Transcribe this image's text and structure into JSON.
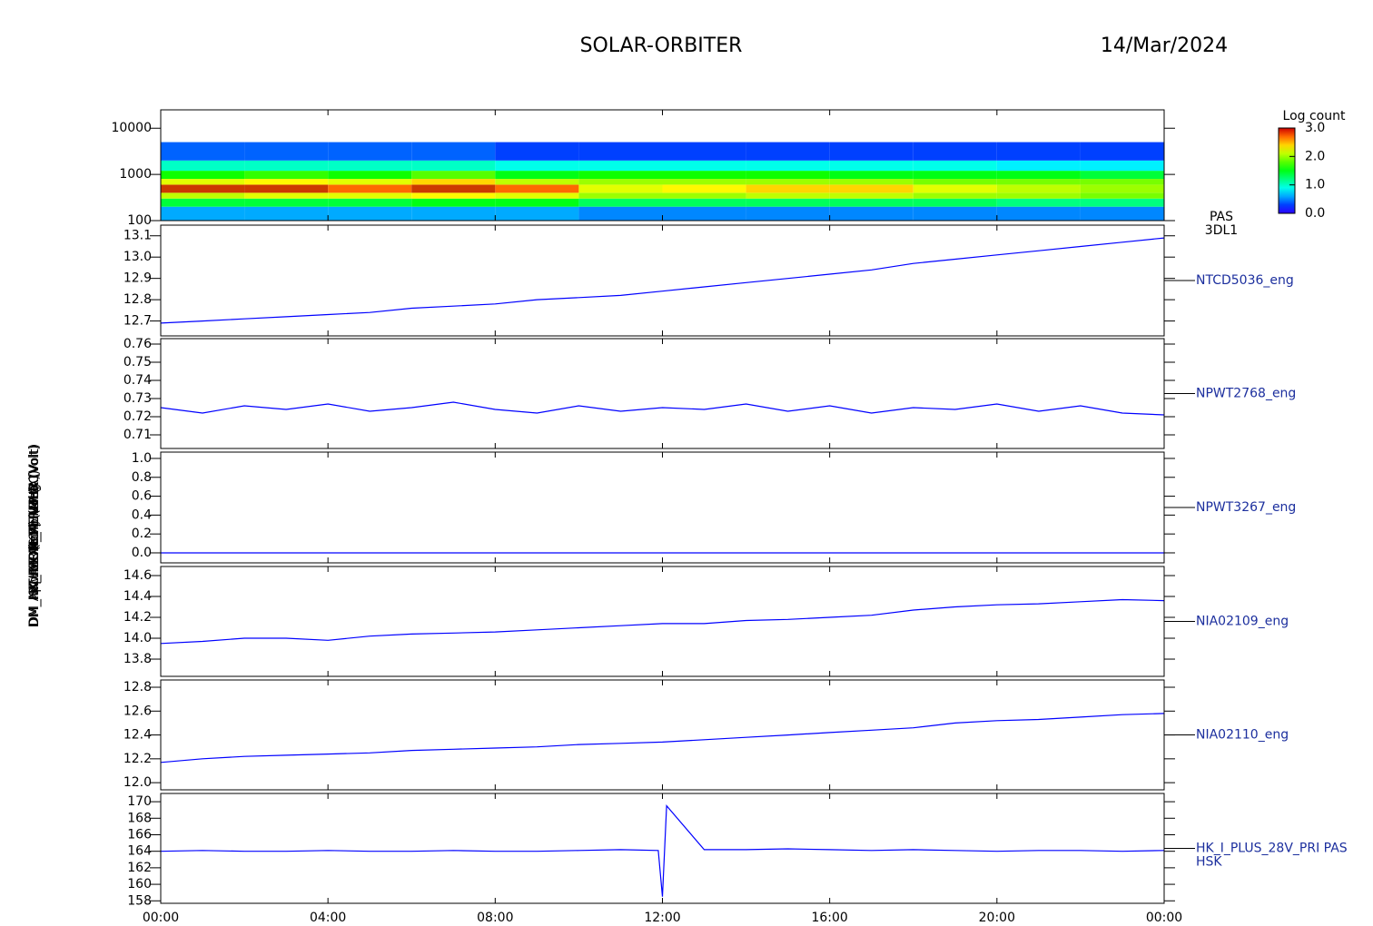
{
  "title": "SOLAR-ORBITER",
  "date": "14/Mar/2024",
  "chart_data": [
    {
      "type": "spectrogram",
      "ylabel": "(eV)",
      "label": [
        "PAS",
        "3DL1"
      ],
      "log": true,
      "ylim": [
        100,
        25000
      ],
      "yticks": [
        100,
        1000,
        10000
      ],
      "time_bins": [
        0,
        2,
        4,
        6,
        8,
        10,
        12,
        14,
        16,
        18,
        20,
        22,
        24
      ],
      "energy_bins": [
        100,
        200,
        300,
        400,
        600,
        800,
        1200,
        2000,
        5000
      ],
      "values": [
        [
          0.6,
          1.4,
          2.1,
          2.8,
          2.2,
          1.6,
          1.0,
          0.4
        ],
        [
          0.6,
          1.4,
          2.2,
          2.8,
          2.3,
          1.7,
          1.0,
          0.4
        ],
        [
          0.6,
          1.4,
          2.2,
          2.7,
          2.2,
          1.6,
          1.0,
          0.4
        ],
        [
          0.6,
          1.5,
          2.3,
          2.8,
          2.4,
          1.8,
          1.0,
          0.4
        ],
        [
          0.6,
          1.5,
          2.2,
          2.7,
          2.1,
          1.5,
          0.9,
          0.3
        ],
        [
          0.5,
          1.3,
          2.0,
          2.2,
          2.0,
          1.6,
          0.9,
          0.3
        ],
        [
          0.5,
          1.3,
          2.0,
          2.3,
          2.0,
          1.6,
          0.9,
          0.3
        ],
        [
          0.5,
          1.3,
          2.1,
          2.4,
          2.0,
          1.6,
          0.9,
          0.3
        ],
        [
          0.5,
          1.3,
          2.1,
          2.4,
          2.0,
          1.5,
          0.9,
          0.3
        ],
        [
          0.5,
          1.3,
          2.0,
          2.2,
          1.9,
          1.5,
          0.9,
          0.3
        ],
        [
          0.5,
          1.2,
          2.0,
          2.1,
          1.9,
          1.5,
          0.8,
          0.3
        ],
        [
          0.5,
          1.2,
          1.9,
          2.0,
          1.9,
          1.4,
          0.8,
          0.3
        ]
      ],
      "colorbar": {
        "title": "Log count",
        "lim": [
          0,
          3
        ],
        "ticks": [
          {
            "value": 0,
            "label": "0.0"
          },
          {
            "value": 1,
            "label": "1.0"
          },
          {
            "value": 2,
            "label": "2.0"
          },
          {
            "value": 3,
            "label": "3.0"
          }
        ]
      }
    },
    {
      "type": "line",
      "ylabel": "Approx Temp (DegC)",
      "label": "NTCD5036_eng",
      "color": "#0000ff",
      "ylim": [
        12.63,
        13.15
      ],
      "yticks": [
        12.7,
        12.8,
        12.9,
        {
          "value": 13.0,
          "label": "13.0"
        },
        13.1
      ],
      "x": [
        0,
        1,
        2,
        3,
        4,
        5,
        6,
        7,
        8,
        9,
        10,
        11,
        12,
        13,
        14,
        15,
        16,
        17,
        18,
        19,
        20,
        21,
        22,
        23,
        24
      ],
      "values": [
        12.69,
        12.7,
        12.71,
        12.72,
        12.73,
        12.74,
        12.76,
        12.77,
        12.78,
        12.8,
        12.81,
        12.82,
        12.84,
        12.86,
        12.88,
        12.9,
        12.92,
        12.94,
        12.97,
        12.99,
        13.01,
        13.03,
        13.05,
        13.07,
        13.09
      ]
    },
    {
      "type": "line",
      "ylabel": "SWA-EAS_TEMP (A)",
      "label": "NPWT2768_eng",
      "color": "#0000ff",
      "ylim": [
        0.7025,
        0.763
      ],
      "yticks": [
        0.71,
        0.72,
        0.73,
        0.74,
        0.75,
        0.76
      ],
      "x": [
        0,
        1,
        2,
        3,
        4,
        5,
        6,
        7,
        8,
        9,
        10,
        11,
        12,
        13,
        14,
        15,
        16,
        17,
        18,
        19,
        20,
        21,
        22,
        23,
        24
      ],
      "values": [
        0.725,
        0.722,
        0.726,
        0.724,
        0.727,
        0.723,
        0.725,
        0.728,
        0.724,
        0.722,
        0.726,
        0.723,
        0.725,
        0.724,
        0.727,
        0.723,
        0.726,
        0.722,
        0.725,
        0.724,
        0.727,
        0.723,
        0.726,
        0.722,
        0.721
      ]
    },
    {
      "type": "line",
      "ylabel": "THERMO4 (Volt)",
      "label": "NPWT3267_eng",
      "color": "#0000ff",
      "ylim": [
        -0.106,
        1.067
      ],
      "yticks": [
        {
          "value": 0,
          "label": "0.0"
        },
        0.2,
        0.4,
        0.6,
        0.8,
        {
          "value": 1,
          "label": "1.0"
        }
      ],
      "x": [
        0,
        1,
        2,
        3,
        4,
        5,
        6,
        7,
        8,
        9,
        10,
        11,
        12,
        13,
        14,
        15,
        16,
        17,
        18,
        19,
        20,
        21,
        22,
        23,
        24
      ],
      "values": [
        0,
        0,
        0,
        0,
        0,
        0,
        0,
        0,
        0,
        0,
        0,
        0,
        0,
        0,
        0,
        0,
        0,
        0,
        0,
        0,
        0,
        0,
        0,
        0,
        0
      ]
    },
    {
      "type": "line",
      "ylabel": "DM_HK_IMON_PERMHR (Volt)",
      "label": "NIA02109_eng",
      "color": "#0000ff",
      "ylim": [
        13.635,
        14.687
      ],
      "yticks": [
        13.8,
        {
          "value": 14.0,
          "label": "14.0"
        },
        14.2,
        14.4,
        14.6
      ],
      "x": [
        0,
        1,
        2,
        3,
        4,
        5,
        6,
        7,
        8,
        9,
        10,
        11,
        12,
        13,
        14,
        15,
        16,
        17,
        18,
        19,
        20,
        21,
        22,
        23,
        24
      ],
      "values": [
        13.95,
        13.97,
        14.0,
        14.0,
        13.98,
        14.02,
        14.04,
        14.05,
        14.06,
        14.08,
        14.1,
        14.12,
        14.14,
        14.14,
        14.17,
        14.18,
        14.2,
        14.22,
        14.27,
        14.3,
        14.32,
        14.33,
        14.35,
        14.37,
        14.36
      ]
    },
    {
      "type": "line",
      "ylabel": "DM_HK_IMON_PERMLR (Volt)",
      "label": "NIA02110_eng",
      "color": "#0000ff",
      "ylim": [
        11.94,
        12.861
      ],
      "yticks": [
        {
          "value": 12.0,
          "label": "12.0"
        },
        12.2,
        12.4,
        12.6,
        12.8
      ],
      "x": [
        0,
        1,
        2,
        3,
        4,
        5,
        6,
        7,
        8,
        9,
        10,
        11,
        12,
        13,
        14,
        15,
        16,
        17,
        18,
        19,
        20,
        21,
        22,
        23,
        24
      ],
      "values": [
        12.17,
        12.2,
        12.22,
        12.23,
        12.24,
        12.25,
        12.27,
        12.28,
        12.29,
        12.3,
        12.32,
        12.33,
        12.34,
        12.36,
        12.38,
        12.4,
        12.42,
        12.44,
        12.46,
        12.5,
        12.52,
        12.53,
        12.55,
        12.57,
        12.58
      ]
    },
    {
      "type": "line",
      "ylabel": "(mA)",
      "label": [
        "HK_I_PLUS_28V_PRI PAS",
        "HSK"
      ],
      "color": "#0000ff",
      "ylim": [
        157.7,
        171
      ],
      "yticks": [
        158,
        160,
        162,
        164,
        166,
        168,
        170
      ],
      "xlim": [
        0,
        24
      ],
      "xticks": [
        {
          "value": 0,
          "label": "00:00"
        },
        {
          "value": 4,
          "label": "04:00"
        },
        {
          "value": 8,
          "label": "08:00"
        },
        {
          "value": 12,
          "label": "12:00"
        },
        {
          "value": 16,
          "label": "16:00"
        },
        {
          "value": 20,
          "label": "20:00"
        },
        {
          "value": 24,
          "label": "00:00"
        }
      ],
      "x": [
        0,
        1,
        2,
        3,
        4,
        5,
        6,
        7,
        8,
        9,
        10,
        11,
        11.9,
        12,
        12.1,
        13,
        14,
        15,
        16,
        17,
        18,
        19,
        20,
        21,
        22,
        23,
        24
      ],
      "values": [
        164,
        164.1,
        164,
        164,
        164.1,
        164,
        164,
        164.1,
        164,
        164,
        164.1,
        164.2,
        164.1,
        158.5,
        169.5,
        164.2,
        164.2,
        164.3,
        164.2,
        164.1,
        164.2,
        164.1,
        164,
        164.1,
        164.1,
        164,
        164.1
      ]
    }
  ]
}
